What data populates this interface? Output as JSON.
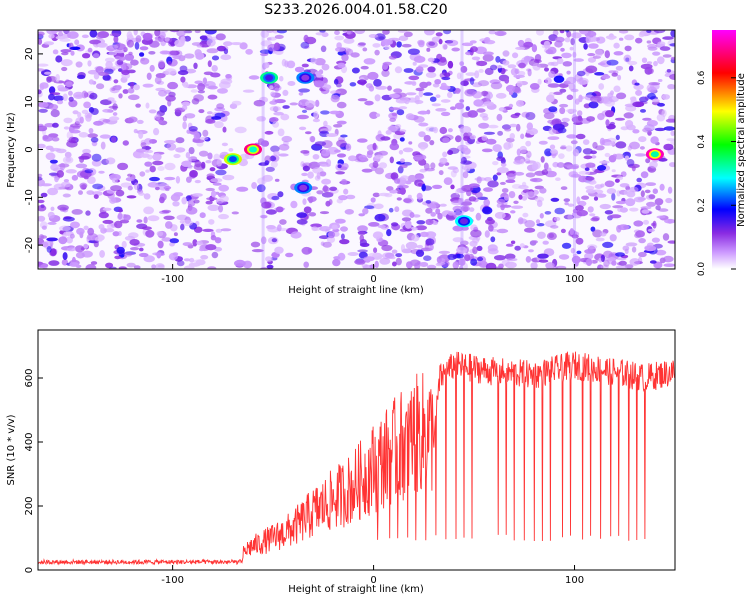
{
  "title": "S233.2026.004.01.58.C20",
  "chart_data": [
    {
      "type": "heatmap",
      "xlabel": "Height of straight line (km)",
      "ylabel": "Frequency (Hz)",
      "xlim": [
        -167,
        150
      ],
      "ylim": [
        -25,
        25
      ],
      "x_ticks": [
        -100,
        0,
        100
      ],
      "y_ticks": [
        20,
        10,
        0,
        -10,
        -20
      ],
      "colorbar": {
        "label": "Normalized spectral amplitude",
        "range": [
          0,
          0.75
        ],
        "ticks": [
          "0.0",
          "0.2",
          "0.4",
          "0.6"
        ],
        "colors": [
          "#ffffff",
          "#8a2be2",
          "#0000ff",
          "#00ffff",
          "#00ff00",
          "#ffff00",
          "#ff0000",
          "#ff00ff"
        ]
      },
      "gaps_km": [
        [
          -73,
          -55
        ],
        [
          -43,
          -36
        ],
        [
          -10,
          -7
        ],
        [
          60,
          62
        ]
      ],
      "vertical_lines_km": [
        -55,
        44,
        100
      ],
      "hotspots": [
        {
          "x": -60,
          "y": 0,
          "value": 0.72
        },
        {
          "x": -70,
          "y": -2,
          "value": 0.5
        },
        {
          "x": -52,
          "y": 15,
          "value": 0.35
        },
        {
          "x": -34,
          "y": 15,
          "value": 0.25
        },
        {
          "x": -35,
          "y": -8,
          "value": 0.25
        },
        {
          "x": 45,
          "y": -15,
          "value": 0.3
        },
        {
          "x": 140,
          "y": -1,
          "value": 0.75
        }
      ]
    },
    {
      "type": "line",
      "xlabel": "Height of straight line (km)",
      "ylabel": "SNR (10 * v/v)",
      "xlim": [
        -167,
        150
      ],
      "ylim": [
        0,
        750
      ],
      "x_ticks": [
        -100,
        0,
        100
      ],
      "y_ticks": [
        0,
        200,
        400,
        600
      ],
      "color": "#ff3333",
      "profile": [
        {
          "x": -167,
          "y": 20
        },
        {
          "x": -70,
          "y": 22
        },
        {
          "x": -62,
          "y": 70
        },
        {
          "x": -50,
          "y": 100
        },
        {
          "x": -40,
          "y": 130
        },
        {
          "x": -30,
          "y": 180
        },
        {
          "x": -20,
          "y": 220
        },
        {
          "x": -10,
          "y": 260
        },
        {
          "x": 0,
          "y": 320
        },
        {
          "x": 10,
          "y": 370
        },
        {
          "x": 20,
          "y": 420
        },
        {
          "x": 25,
          "y": 430
        },
        {
          "x": 30,
          "y": 420
        },
        {
          "x": 33,
          "y": 600
        },
        {
          "x": 40,
          "y": 640
        },
        {
          "x": 60,
          "y": 620
        },
        {
          "x": 80,
          "y": 610
        },
        {
          "x": 100,
          "y": 640
        },
        {
          "x": 120,
          "y": 620
        },
        {
          "x": 135,
          "y": 600
        },
        {
          "x": 150,
          "y": 620
        }
      ],
      "dropouts_x": [
        2,
        8,
        12,
        17,
        21,
        26,
        31,
        36,
        41,
        45,
        49,
        62,
        66,
        70,
        75,
        80,
        84,
        88,
        94,
        98,
        104,
        108,
        113,
        118,
        122,
        127,
        131,
        135
      ],
      "dropout_floor": 90
    }
  ]
}
